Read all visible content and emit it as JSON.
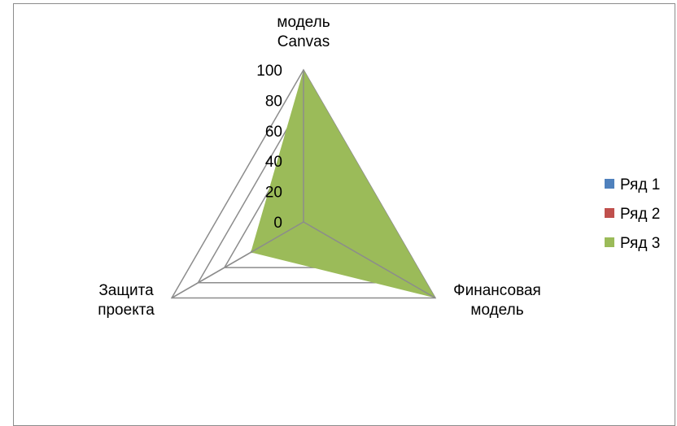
{
  "chart_data": {
    "type": "radar",
    "categories": [
      "модель Canvas",
      "Финансовая модель",
      "Защита проекта"
    ],
    "category_lines": [
      [
        "модель",
        "Canvas"
      ],
      [
        "Финансовая",
        "модель"
      ],
      [
        "Защита",
        "проекта"
      ]
    ],
    "series": [
      {
        "name": "Ряд 1",
        "color": "#4f81bd",
        "values": [
          0,
          0,
          0
        ]
      },
      {
        "name": "Ряд 2",
        "color": "#c0504d",
        "values": [
          0,
          0,
          0
        ]
      },
      {
        "name": "Ряд 3",
        "color": "#9bbb59",
        "values": [
          100,
          100,
          40
        ]
      }
    ],
    "r_axis": {
      "min": 0,
      "max": 100,
      "major": 20
    },
    "ticks": [
      "0",
      "20",
      "40",
      "60",
      "80",
      "100"
    ],
    "legend_position": "right",
    "gridlines": "grey, major"
  }
}
